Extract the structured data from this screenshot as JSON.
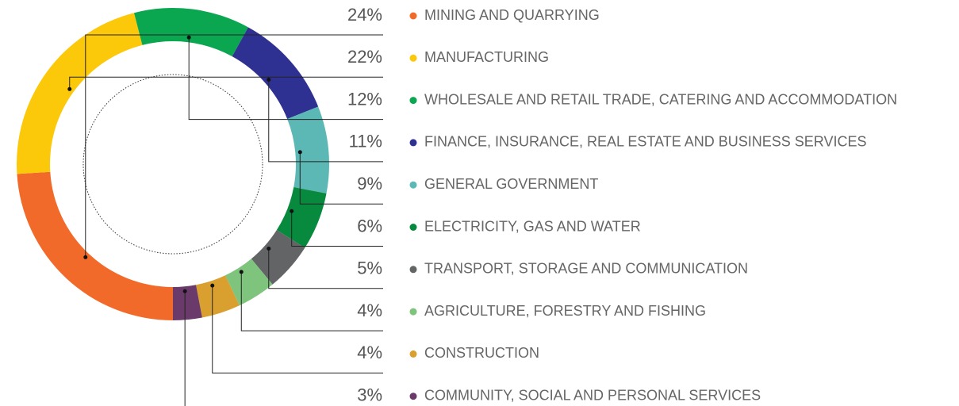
{
  "chart_data": {
    "type": "donut",
    "categories": [
      "MINING AND QUARRYING",
      "MANUFACTURING",
      "WHOLESALE AND RETAIL TRADE, CATERING AND ACCOMMODATION",
      "FINANCE, INSURANCE, REAL ESTATE AND BUSINESS SERVICES",
      "GENERAL GOVERNMENT",
      "ELECTRICITY, GAS AND WATER",
      "TRANSPORT, STORAGE AND COMMUNICATION",
      "AGRICULTURE, FORESTRY AND FISHING",
      "CONSTRUCTION",
      "COMMUNITY, SOCIAL AND PERSONAL SERVICES"
    ],
    "values": [
      24,
      22,
      12,
      11,
      9,
      6,
      5,
      4,
      4,
      3
    ],
    "value_labels": [
      "24%",
      "22%",
      "12%",
      "11%",
      "9%",
      "6%",
      "5%",
      "4%",
      "4%",
      "3%"
    ],
    "colors": [
      "#f26a2a",
      "#fcc80a",
      "#0aa650",
      "#2e3192",
      "#5bb8b4",
      "#078a3e",
      "#636466",
      "#7fc47d",
      "#d9a030",
      "#6a3a6a"
    ]
  }
}
